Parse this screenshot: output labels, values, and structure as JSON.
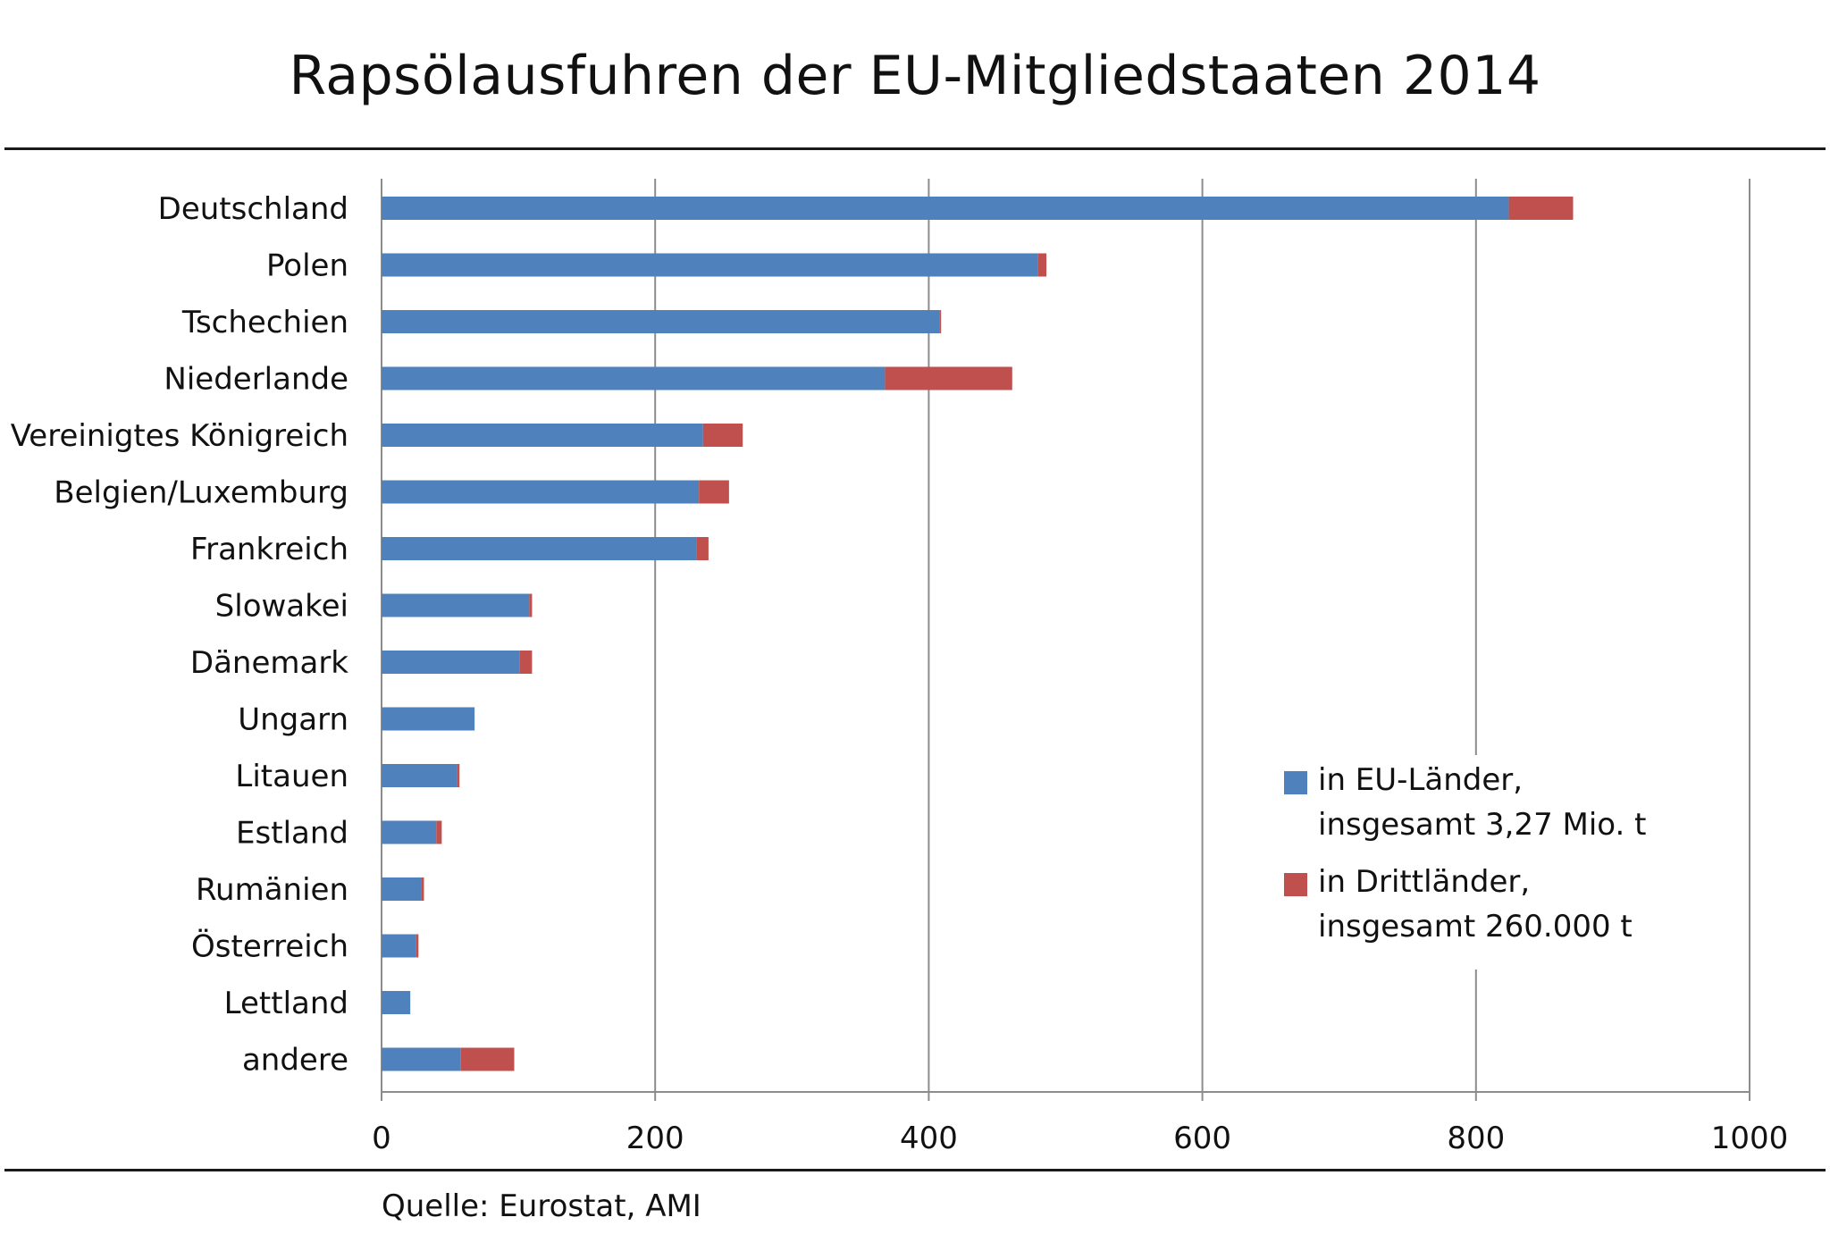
{
  "chart_data": {
    "type": "bar",
    "orientation": "horizontal",
    "stacked": true,
    "title": "Rapsölausfuhren der EU-Mitgliedstaaten  2014",
    "categories": [
      "Deutschland",
      "Polen",
      "Tschechien",
      "Niederlande",
      "Vereinigtes Königreich",
      "Belgien/Luxemburg",
      "Frankreich",
      "Slowakei",
      "Dänemark",
      "Ungarn",
      "Litauen",
      "Estland",
      "Rumänien",
      "Österreich",
      "Lettland",
      "andere"
    ],
    "series": [
      {
        "name": "in EU-Länder",
        "name_line2": "insgesamt  3,27  Mio. t",
        "color": "#4f81bd",
        "values": [
          824,
          480,
          408,
          368,
          235,
          232,
          230,
          108,
          101,
          68,
          55,
          40,
          29,
          25,
          21,
          58
        ]
      },
      {
        "name": "in Drittländer",
        "name_line2": "insgesamt  260.000  t",
        "color": "#c0504d",
        "values": [
          47,
          6,
          1,
          93,
          29,
          22,
          9,
          2,
          9,
          0,
          2,
          4,
          2,
          2,
          0,
          39
        ]
      }
    ],
    "xlim": [
      0,
      1000
    ],
    "xticks": [
      "0",
      "200",
      "400",
      "600",
      "800",
      "1000"
    ],
    "grid": "vertical",
    "legend_position": "bottom-right"
  },
  "legend": {
    "eu_line1": "in EU-Länder,",
    "eu_line2": "insgesamt  3,27  Mio. t",
    "third_line1": "in Drittländer,",
    "third_line2": "insgesamt  260.000  t"
  },
  "source": "Quelle: Eurostat, AMI"
}
